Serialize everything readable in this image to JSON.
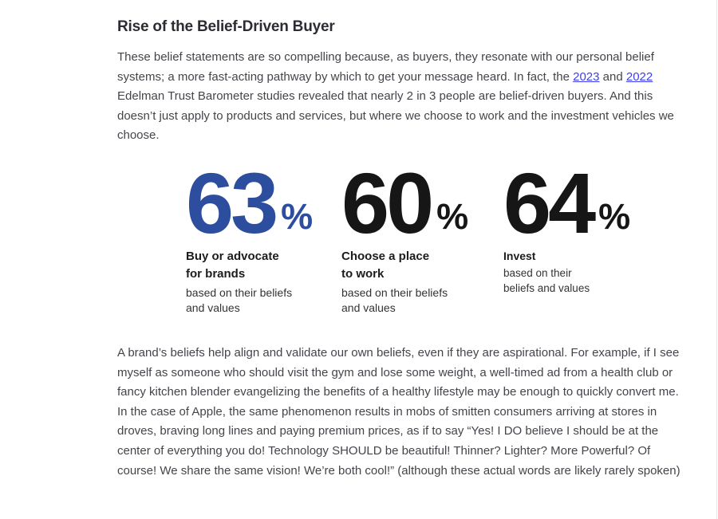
{
  "colors": {
    "background": "#ffffff",
    "heading_text": "#2b2d33",
    "body_text": "#43454a",
    "link": "#3d3df0",
    "stat_blue": "#2d4d9e",
    "stat_black": "#161616"
  },
  "article": {
    "heading": "Rise of the Belief-Driven Buyer",
    "intro": {
      "part1": "These belief statements are so compelling because, as buyers, they resonate with our personal belief systems; a more fast-acting pathway by which to get your message heard. In fact, the ",
      "link_2023": "2023",
      "part2": " and ",
      "link_2022": "2022",
      "part3": " Edelman Trust Barometer studies revealed that nearly 2 in 3 people are belief-driven buyers. And this doesn’t just apply to products and services, but where we choose to work and the investment vehicles we choose."
    },
    "body_paragraph": "A brand’s beliefs help align and validate our own beliefs, even if they are aspirational. For example, if I see myself as someone who should visit the gym and lose some weight, a well-timed ad from a health club or fancy kitchen blender evangelizing the benefits of a healthy lifestyle may be enough to quickly convert me.  In the case of Apple, the same phenomenon results in mobs of smitten consumers arriving at stores in droves, braving long lines and paying premium prices, as if to say “Yes! I DO believe I should be at the center of everything you do! Technology SHOULD be beautiful! Thinner? Lighter? More Powerful? Of course! We share the same vision! We’re both cool!” (although these actual words are likely rarely spoken)"
  },
  "stats": {
    "items": [
      {
        "value": "63",
        "percent_sign": "%",
        "color": "#2d4d9e",
        "title_lines": [
          "Buy or advocate",
          "for brands"
        ],
        "subtitle_lines": [
          "based on their beliefs",
          "and values"
        ]
      },
      {
        "value": "60",
        "percent_sign": "%",
        "color": "#161616",
        "title_lines": [
          "Choose a place",
          "to work"
        ],
        "subtitle_lines": [
          "based on their beliefs",
          "and values"
        ]
      },
      {
        "value": "64",
        "percent_sign": "%",
        "color": "#161616",
        "title_lines": [
          "Invest"
        ],
        "subtitle_lines": [
          "based on their",
          "beliefs and values"
        ]
      }
    ]
  }
}
